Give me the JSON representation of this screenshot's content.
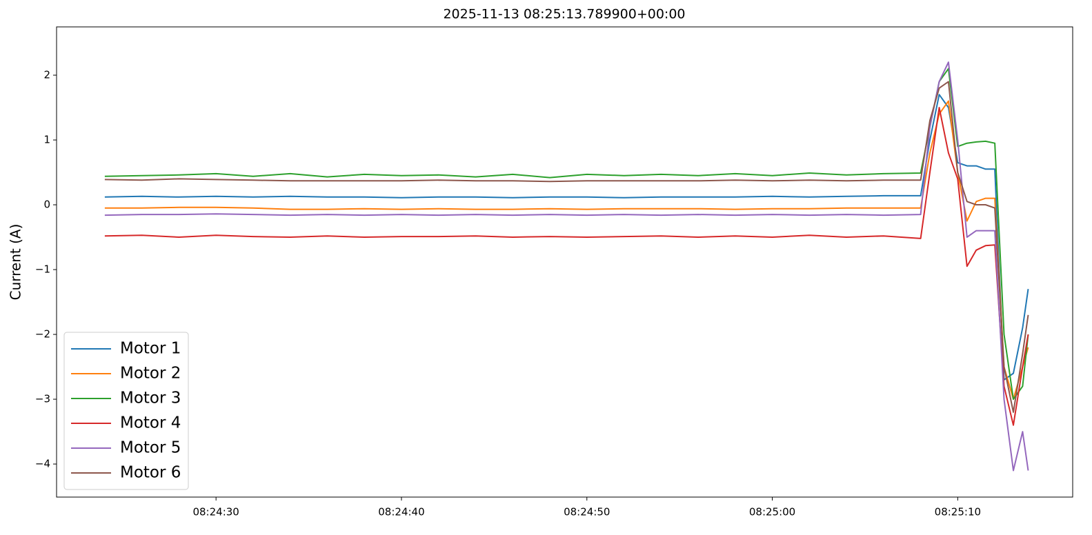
{
  "chart_data": {
    "type": "line",
    "title": "2025-11-13 08:25:13.789900+00:00",
    "y_label": "Current (A)",
    "x": [
      "08:24:24",
      "08:24:26",
      "08:24:28",
      "08:24:30",
      "08:24:32",
      "08:24:34",
      "08:24:36",
      "08:24:38",
      "08:24:40",
      "08:24:42",
      "08:24:44",
      "08:24:46",
      "08:24:48",
      "08:24:50",
      "08:24:52",
      "08:24:54",
      "08:24:56",
      "08:24:58",
      "08:25:00",
      "08:25:02",
      "08:25:04",
      "08:25:06",
      "08:25:08",
      "08:25:08.5",
      "08:25:09",
      "08:25:09.5",
      "08:25:10",
      "08:25:10.5",
      "08:25:11",
      "08:25:11.5",
      "08:25:12",
      "08:25:12.5",
      "08:25:13",
      "08:25:13.5",
      "08:25:13.8"
    ],
    "series": [
      {
        "name": "Motor 1",
        "color": "#1f77b4",
        "values": [
          0.12,
          0.13,
          0.12,
          0.13,
          0.12,
          0.13,
          0.12,
          0.12,
          0.11,
          0.12,
          0.12,
          0.11,
          0.12,
          0.12,
          0.11,
          0.12,
          0.12,
          0.12,
          0.13,
          0.12,
          0.13,
          0.14,
          0.14,
          1.0,
          1.7,
          1.5,
          0.65,
          0.6,
          0.6,
          0.55,
          0.55,
          -2.7,
          -2.6,
          -1.9,
          -1.3
        ]
      },
      {
        "name": "Motor 2",
        "color": "#ff7f0e",
        "values": [
          -0.05,
          -0.05,
          -0.04,
          -0.04,
          -0.05,
          -0.07,
          -0.07,
          -0.06,
          -0.07,
          -0.06,
          -0.07,
          -0.07,
          -0.06,
          -0.07,
          -0.06,
          -0.06,
          -0.06,
          -0.07,
          -0.06,
          -0.06,
          -0.05,
          -0.05,
          -0.05,
          0.8,
          1.4,
          1.6,
          0.5,
          -0.25,
          0.05,
          0.1,
          0.1,
          -2.5,
          -3.0,
          -2.5,
          -2.2
        ]
      },
      {
        "name": "Motor 3",
        "color": "#2ca02c",
        "values": [
          0.44,
          0.45,
          0.46,
          0.48,
          0.44,
          0.48,
          0.43,
          0.47,
          0.45,
          0.46,
          0.43,
          0.47,
          0.42,
          0.47,
          0.45,
          0.47,
          0.45,
          0.48,
          0.45,
          0.49,
          0.46,
          0.48,
          0.49,
          1.2,
          1.9,
          2.1,
          0.9,
          0.95,
          0.97,
          0.98,
          0.95,
          -2.0,
          -3.0,
          -2.8,
          -2.0
        ]
      },
      {
        "name": "Motor 4",
        "color": "#d62728",
        "values": [
          -0.48,
          -0.47,
          -0.5,
          -0.47,
          -0.49,
          -0.5,
          -0.48,
          -0.5,
          -0.49,
          -0.49,
          -0.48,
          -0.5,
          -0.49,
          -0.5,
          -0.49,
          -0.48,
          -0.5,
          -0.48,
          -0.5,
          -0.47,
          -0.5,
          -0.48,
          -0.52,
          0.5,
          1.5,
          0.8,
          0.4,
          -0.95,
          -0.7,
          -0.63,
          -0.62,
          -2.8,
          -3.4,
          -2.5,
          -2.0
        ]
      },
      {
        "name": "Motor 5",
        "color": "#9467bd",
        "values": [
          -0.16,
          -0.15,
          -0.15,
          -0.14,
          -0.15,
          -0.16,
          -0.15,
          -0.16,
          -0.15,
          -0.16,
          -0.15,
          -0.16,
          -0.15,
          -0.16,
          -0.15,
          -0.16,
          -0.15,
          -0.16,
          -0.15,
          -0.16,
          -0.15,
          -0.16,
          -0.15,
          1.2,
          1.9,
          2.2,
          1.0,
          -0.5,
          -0.4,
          -0.4,
          -0.4,
          -3.0,
          -4.1,
          -3.5,
          -4.1
        ]
      },
      {
        "name": "Motor 6",
        "color": "#8c564b",
        "values": [
          0.39,
          0.38,
          0.4,
          0.39,
          0.38,
          0.37,
          0.37,
          0.37,
          0.37,
          0.38,
          0.37,
          0.37,
          0.36,
          0.37,
          0.37,
          0.37,
          0.37,
          0.38,
          0.37,
          0.38,
          0.37,
          0.38,
          0.38,
          1.3,
          1.8,
          1.9,
          0.5,
          0.05,
          0.0,
          0.0,
          -0.05,
          -2.5,
          -3.2,
          -2.3,
          -1.7
        ]
      }
    ],
    "xlim": [
      "08:24:21.4",
      "08:25:16.2"
    ],
    "xticks": [
      "08:24:30",
      "08:24:40",
      "08:24:50",
      "08:25:00",
      "08:25:10"
    ],
    "ylim": [
      -4.51,
      2.745
    ],
    "yticks": [
      {
        "value": -4,
        "label": "−4"
      },
      {
        "value": -3,
        "label": "−3"
      },
      {
        "value": -2,
        "label": "−2"
      },
      {
        "value": -1,
        "label": "−1"
      },
      0,
      1,
      2
    ],
    "legend": "lower left"
  }
}
